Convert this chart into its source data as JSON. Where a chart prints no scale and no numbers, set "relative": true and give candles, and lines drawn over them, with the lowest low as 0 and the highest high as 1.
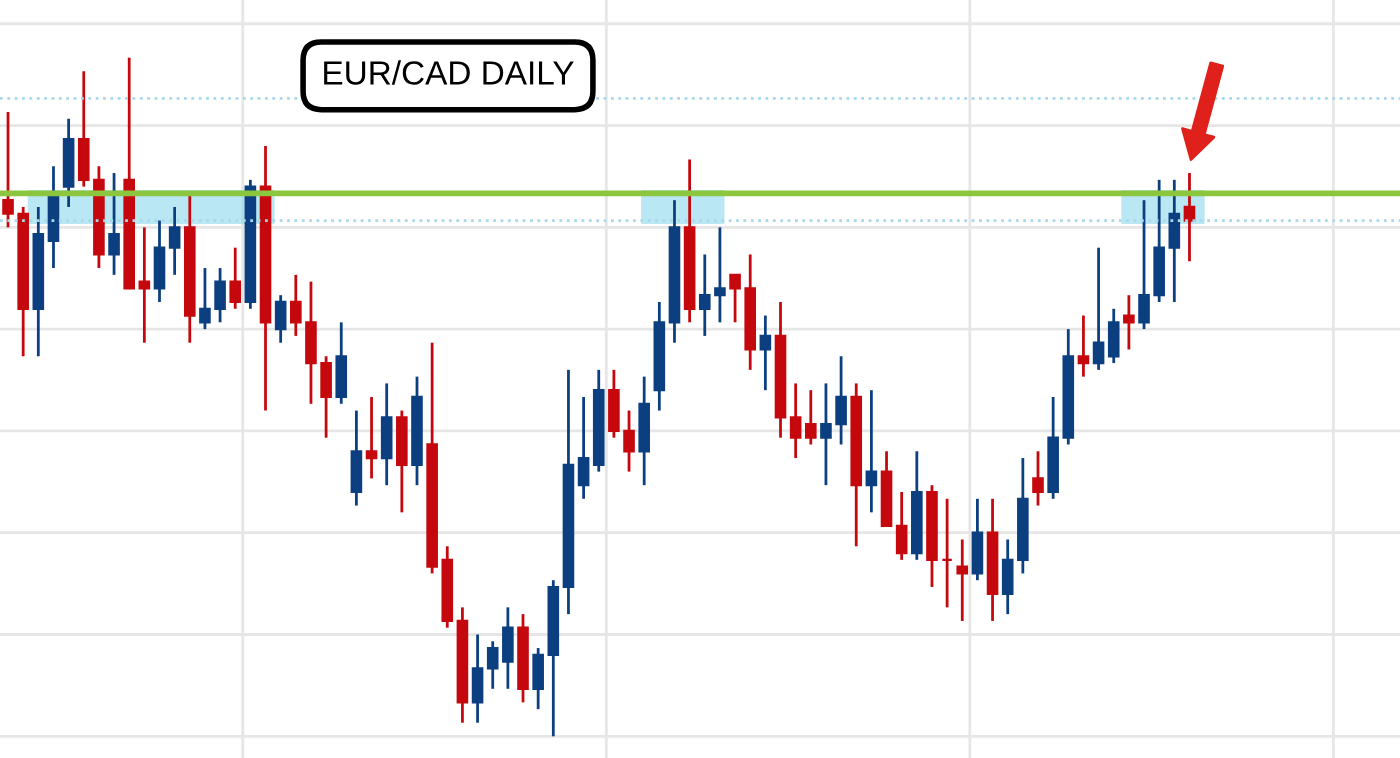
{
  "chart_data": {
    "type": "candlestick",
    "title": "EUR/CAD DAILY",
    "relative": true,
    "grid": true,
    "categories": [
      null,
      null,
      null,
      null,
      null,
      null,
      null,
      null,
      null,
      null,
      null,
      null,
      null,
      null,
      null,
      null,
      null,
      null,
      null,
      null,
      null,
      null,
      null,
      null,
      null,
      null,
      null,
      null,
      null,
      null,
      null,
      null,
      null,
      null,
      null,
      null,
      null,
      null,
      null,
      null,
      null,
      null,
      null,
      null,
      null,
      null,
      null,
      null,
      null,
      null,
      null,
      null,
      null,
      null,
      null,
      null,
      null,
      null,
      null,
      null,
      null,
      null,
      null,
      null,
      null,
      null,
      null,
      null,
      null,
      null,
      null,
      null,
      null,
      null,
      null,
      null,
      null,
      null,
      null
    ],
    "ohlc": [
      [
        0.79,
        0.92,
        0.75,
        0.77
      ],
      [
        0.77,
        0.78,
        0.56,
        0.63
      ],
      [
        0.63,
        0.78,
        0.56,
        0.74
      ],
      [
        0.73,
        0.84,
        0.69,
        0.8
      ],
      [
        0.81,
        0.91,
        0.78,
        0.88
      ],
      [
        0.88,
        0.98,
        0.81,
        0.82
      ],
      [
        0.82,
        0.84,
        0.69,
        0.71
      ],
      [
        0.71,
        0.83,
        0.68,
        0.74
      ],
      [
        0.82,
        1.0,
        0.66,
        0.66
      ],
      [
        0.67,
        0.75,
        0.58,
        0.66
      ],
      [
        0.66,
        0.76,
        0.64,
        0.72
      ],
      [
        0.72,
        0.78,
        0.68,
        0.75
      ],
      [
        0.75,
        0.8,
        0.58,
        0.62
      ],
      [
        0.61,
        0.69,
        0.6,
        0.63
      ],
      [
        0.63,
        0.69,
        0.61,
        0.67
      ],
      [
        0.67,
        0.72,
        0.63,
        0.64
      ],
      [
        0.64,
        0.82,
        0.63,
        0.81
      ],
      [
        0.81,
        0.87,
        0.48,
        0.61
      ],
      [
        0.6,
        0.65,
        0.58,
        0.64
      ],
      [
        0.64,
        0.68,
        0.59,
        0.61
      ],
      [
        0.61,
        0.67,
        0.49,
        0.55
      ],
      [
        0.55,
        0.56,
        0.44,
        0.5
      ],
      [
        0.5,
        0.61,
        0.49,
        0.56
      ],
      [
        0.36,
        0.48,
        0.34,
        0.42
      ],
      [
        0.42,
        0.5,
        0.38,
        0.41
      ],
      [
        0.41,
        0.52,
        0.37,
        0.47
      ],
      [
        0.47,
        0.48,
        0.33,
        0.4
      ],
      [
        0.4,
        0.53,
        0.37,
        0.5
      ],
      [
        0.43,
        0.58,
        0.24,
        0.25
      ],
      [
        0.26,
        0.28,
        0.16,
        0.17
      ],
      [
        0.17,
        0.19,
        0.02,
        0.05
      ],
      [
        0.05,
        0.15,
        0.02,
        0.1
      ],
      [
        0.1,
        0.14,
        0.07,
        0.13
      ],
      [
        0.11,
        0.19,
        0.07,
        0.16
      ],
      [
        0.16,
        0.18,
        0.05,
        0.07
      ],
      [
        0.07,
        0.13,
        0.04,
        0.12
      ],
      [
        0.12,
        0.23,
        0.0,
        0.22
      ],
      [
        0.22,
        0.54,
        0.18,
        0.4
      ],
      [
        0.37,
        0.5,
        0.35,
        0.41
      ],
      [
        0.4,
        0.54,
        0.39,
        0.51
      ],
      [
        0.51,
        0.54,
        0.44,
        0.45
      ],
      [
        0.45,
        0.48,
        0.39,
        0.42
      ],
      [
        0.42,
        0.53,
        0.37,
        0.49
      ],
      [
        0.51,
        0.64,
        0.48,
        0.61
      ],
      [
        0.61,
        0.79,
        0.58,
        0.75
      ],
      [
        0.75,
        0.85,
        0.61,
        0.63
      ],
      [
        0.63,
        0.71,
        0.59,
        0.65
      ],
      [
        0.65,
        0.75,
        0.61,
        0.66
      ],
      [
        0.68,
        0.68,
        0.61,
        0.66
      ],
      [
        0.66,
        0.71,
        0.54,
        0.57
      ],
      [
        0.57,
        0.62,
        0.51,
        0.59
      ],
      [
        0.59,
        0.64,
        0.44,
        0.47
      ],
      [
        0.47,
        0.52,
        0.41,
        0.44
      ],
      [
        0.46,
        0.51,
        0.43,
        0.44
      ],
      [
        0.44,
        0.52,
        0.37,
        0.46
      ],
      [
        0.46,
        0.56,
        0.43,
        0.5
      ],
      [
        0.5,
        0.52,
        0.28,
        0.37
      ],
      [
        0.37,
        0.51,
        0.33,
        0.39
      ],
      [
        0.39,
        0.42,
        0.31,
        0.31
      ],
      [
        0.31,
        0.36,
        0.26,
        0.27
      ],
      [
        0.27,
        0.42,
        0.26,
        0.36
      ],
      [
        0.36,
        0.37,
        0.22,
        0.26
      ],
      [
        0.26,
        0.35,
        0.19,
        0.26
      ],
      [
        0.25,
        0.29,
        0.17,
        0.24
      ],
      [
        0.24,
        0.35,
        0.23,
        0.3
      ],
      [
        0.3,
        0.35,
        0.17,
        0.21
      ],
      [
        0.21,
        0.29,
        0.18,
        0.26
      ],
      [
        0.26,
        0.41,
        0.24,
        0.35
      ],
      [
        0.38,
        0.42,
        0.34,
        0.36
      ],
      [
        0.36,
        0.5,
        0.35,
        0.44
      ],
      [
        0.44,
        0.6,
        0.43,
        0.56
      ],
      [
        0.56,
        0.62,
        0.53,
        0.55
      ],
      [
        0.55,
        0.72,
        0.54,
        0.58
      ],
      [
        0.56,
        0.63,
        0.55,
        0.61
      ],
      [
        0.62,
        0.65,
        0.57,
        0.61
      ],
      [
        0.61,
        0.79,
        0.6,
        0.65
      ],
      [
        0.65,
        0.82,
        0.64,
        0.72
      ],
      [
        0.72,
        0.82,
        0.64,
        0.77
      ],
      [
        0.78,
        0.83,
        0.7,
        0.76
      ]
    ],
    "colors": [
      "#c4080d",
      "#c4080d",
      "#0b3f80",
      "#0b3f80",
      "#0b3f80",
      "#c4080d",
      "#c4080d",
      "#0b3f80",
      "#c4080d",
      "#c4080d",
      "#0b3f80",
      "#0b3f80",
      "#c4080d",
      "#0b3f80",
      "#0b3f80",
      "#c4080d",
      "#0b3f80",
      "#c4080d",
      "#0b3f80",
      "#c4080d",
      "#c4080d",
      "#c4080d",
      "#0b3f80",
      "#0b3f80",
      "#c4080d",
      "#0b3f80",
      "#c4080d",
      "#0b3f80",
      "#c4080d",
      "#c4080d",
      "#c4080d",
      "#0b3f80",
      "#0b3f80",
      "#0b3f80",
      "#c4080d",
      "#0b3f80",
      "#0b3f80",
      "#0b3f80",
      "#0b3f80",
      "#0b3f80",
      "#c4080d",
      "#c4080d",
      "#0b3f80",
      "#0b3f80",
      "#0b3f80",
      "#c4080d",
      "#0b3f80",
      "#0b3f80",
      "#c4080d",
      "#c4080d",
      "#0b3f80",
      "#c4080d",
      "#c4080d",
      "#c4080d",
      "#0b3f80",
      "#0b3f80",
      "#c4080d",
      "#0b3f80",
      "#c4080d",
      "#c4080d",
      "#0b3f80",
      "#c4080d",
      "#c4080d",
      "#c4080d",
      "#0b3f80",
      "#c4080d",
      "#0b3f80",
      "#0b3f80",
      "#c4080d",
      "#0b3f80",
      "#0b3f80",
      "#c4080d",
      "#0b3f80",
      "#0b3f80",
      "#c4080d",
      "#0b3f80",
      "#0b3f80",
      "#0b3f80",
      "#c4080d"
    ],
    "ref_lines": [
      {
        "axis": "y",
        "value": 0.8,
        "color": "#8cc63f",
        "line_style": "solid"
      },
      {
        "axis": "y",
        "value": 0.94,
        "color": "#a8d8ea",
        "line_style": "dotted"
      },
      {
        "axis": "y",
        "value": 0.76,
        "color": "#a8d8ea",
        "line_style": "dotted"
      }
    ]
  }
}
